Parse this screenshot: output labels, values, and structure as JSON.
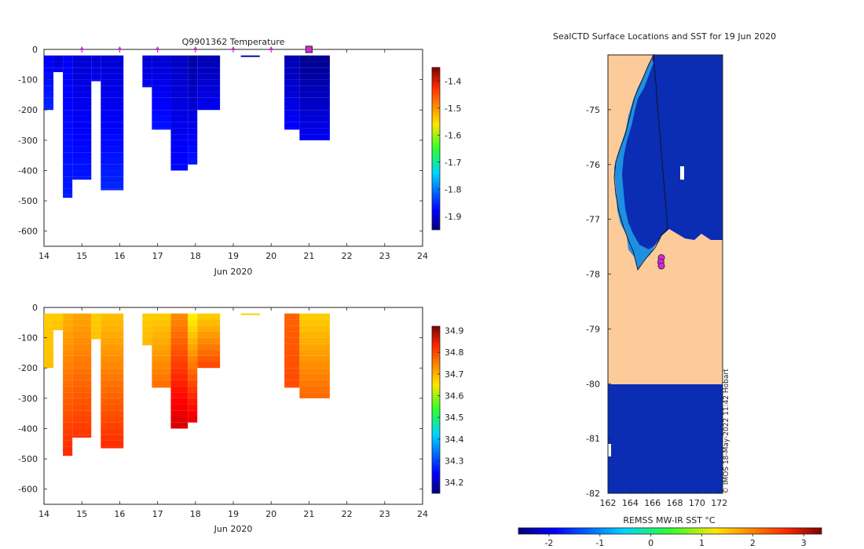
{
  "figure": {
    "credit": "© IMOS 18-May-2022 11:42 Hobart"
  },
  "colors": {
    "land": "#fdcb99",
    "ocean_cold": "#0a2db3",
    "ocean_mid": "#0d49d8",
    "shelf": "#1f8fe0",
    "marker": "#e020e8",
    "marker_edge": "#333333",
    "axis": "#222222"
  },
  "chart_data": [
    {
      "id": "temperature",
      "type": "heatmap",
      "title": "Q9901362  Temperature",
      "xlabel": "Jun 2020",
      "ylabel": "",
      "xlim": [
        14,
        24
      ],
      "ylim": [
        -650,
        0
      ],
      "xticks": [
        14,
        15,
        16,
        17,
        18,
        19,
        20,
        21,
        22,
        23,
        24
      ],
      "yticks": [
        0,
        -100,
        -200,
        -300,
        -400,
        -500,
        -600
      ],
      "colorbar": {
        "min": -1.95,
        "max": -1.35,
        "ticks": [
          -1.4,
          -1.5,
          -1.6,
          -1.7,
          -1.8,
          -1.9
        ],
        "colormap": "jet"
      },
      "profiles": [
        {
          "x0": 14.0,
          "x1": 14.25,
          "depth": 200,
          "top": -1.88,
          "bottom": -1.85
        },
        {
          "x0": 14.25,
          "x1": 14.5,
          "depth": 75,
          "top": -1.9,
          "bottom": -1.88
        },
        {
          "x0": 14.5,
          "x1": 14.75,
          "depth": 490,
          "top": -1.88,
          "bottom": -1.86
        },
        {
          "x0": 14.75,
          "x1": 15.25,
          "depth": 430,
          "top": -1.9,
          "bottom": -1.86
        },
        {
          "x0": 15.25,
          "x1": 15.5,
          "depth": 105,
          "top": -1.9,
          "bottom": -1.88
        },
        {
          "x0": 15.5,
          "x1": 16.1,
          "depth": 465,
          "top": -1.9,
          "bottom": -1.85
        },
        {
          "x0": 16.6,
          "x1": 16.85,
          "depth": 125,
          "top": -1.9,
          "bottom": -1.88
        },
        {
          "x0": 16.85,
          "x1": 17.35,
          "depth": 265,
          "top": -1.9,
          "bottom": -1.86
        },
        {
          "x0": 17.35,
          "x1": 17.8,
          "depth": 400,
          "top": -1.91,
          "bottom": -1.87
        },
        {
          "x0": 17.8,
          "x1": 18.05,
          "depth": 380,
          "top": -1.93,
          "bottom": -1.86
        },
        {
          "x0": 18.05,
          "x1": 18.65,
          "depth": 200,
          "top": -1.92,
          "bottom": -1.88
        },
        {
          "x0": 19.2,
          "x1": 19.7,
          "depth": 25,
          "top": -1.93,
          "bottom": -1.93
        },
        {
          "x0": 20.35,
          "x1": 20.75,
          "depth": 265,
          "top": -1.92,
          "bottom": -1.87
        },
        {
          "x0": 20.75,
          "x1": 21.55,
          "depth": 300,
          "top": -1.94,
          "bottom": -1.88
        }
      ],
      "surface_markers": [
        15,
        16,
        17,
        18,
        19,
        20,
        21
      ],
      "highlight_marker": 21
    },
    {
      "id": "salinity",
      "type": "heatmap",
      "title": "",
      "xlabel": "Jun 2020",
      "ylabel": "",
      "xlim": [
        14,
        24
      ],
      "ylim": [
        -650,
        0
      ],
      "xticks": [
        14,
        15,
        16,
        17,
        18,
        19,
        20,
        21,
        22,
        23,
        24
      ],
      "yticks": [
        0,
        -100,
        -200,
        -300,
        -400,
        -500,
        -600
      ],
      "colorbar": {
        "min": 34.15,
        "max": 34.92,
        "ticks": [
          34.9,
          34.8,
          34.7,
          34.6,
          34.5,
          34.4,
          34.3,
          34.2
        ],
        "colormap": "jet"
      },
      "profiles": [
        {
          "x0": 14.0,
          "x1": 14.25,
          "depth": 200,
          "top": 34.67,
          "bottom": 34.68
        },
        {
          "x0": 14.25,
          "x1": 14.5,
          "depth": 75,
          "top": 34.67,
          "bottom": 34.68
        },
        {
          "x0": 14.5,
          "x1": 14.75,
          "depth": 490,
          "top": 34.69,
          "bottom": 34.8
        },
        {
          "x0": 14.75,
          "x1": 15.25,
          "depth": 430,
          "top": 34.7,
          "bottom": 34.79
        },
        {
          "x0": 15.25,
          "x1": 15.5,
          "depth": 105,
          "top": 34.67,
          "bottom": 34.68
        },
        {
          "x0": 15.5,
          "x1": 16.1,
          "depth": 465,
          "top": 34.68,
          "bottom": 34.8
        },
        {
          "x0": 16.6,
          "x1": 16.85,
          "depth": 125,
          "top": 34.67,
          "bottom": 34.69
        },
        {
          "x0": 16.85,
          "x1": 17.35,
          "depth": 265,
          "top": 34.67,
          "bottom": 34.75
        },
        {
          "x0": 17.35,
          "x1": 17.8,
          "depth": 400,
          "top": 34.72,
          "bottom": 34.86
        },
        {
          "x0": 17.8,
          "x1": 18.05,
          "depth": 380,
          "top": 34.64,
          "bottom": 34.85
        },
        {
          "x0": 18.05,
          "x1": 18.65,
          "depth": 200,
          "top": 34.67,
          "bottom": 34.78
        },
        {
          "x0": 19.2,
          "x1": 19.7,
          "depth": 25,
          "top": 34.67,
          "bottom": 34.67
        },
        {
          "x0": 20.35,
          "x1": 20.75,
          "depth": 265,
          "top": 34.75,
          "bottom": 34.77
        },
        {
          "x0": 20.75,
          "x1": 21.55,
          "depth": 300,
          "top": 34.67,
          "bottom": 34.75
        }
      ]
    },
    {
      "id": "sst_map",
      "type": "heatmap",
      "title": "SealCTD Surface Locations and SST for 19 Jun 2020",
      "xlabel": "",
      "ylabel": "",
      "xlim": [
        162,
        172.3
      ],
      "ylim": [
        -82,
        -74
      ],
      "xticks": [
        162,
        164,
        166,
        168,
        170,
        172
      ],
      "yticks": [
        -75,
        -76,
        -77,
        -78,
        -79,
        -80,
        -81,
        -82
      ],
      "colorbar": {
        "label": "REMSS MW-IR SST °C",
        "min": -2.6,
        "max": 3.35,
        "ticks": [
          -2,
          -1,
          0,
          1,
          2,
          3
        ],
        "colormap": "jet"
      },
      "locations": [
        {
          "lon": 166.8,
          "lat": -77.7
        },
        {
          "lon": 166.75,
          "lat": -77.78
        },
        {
          "lon": 166.8,
          "lat": -77.85
        }
      ]
    }
  ]
}
